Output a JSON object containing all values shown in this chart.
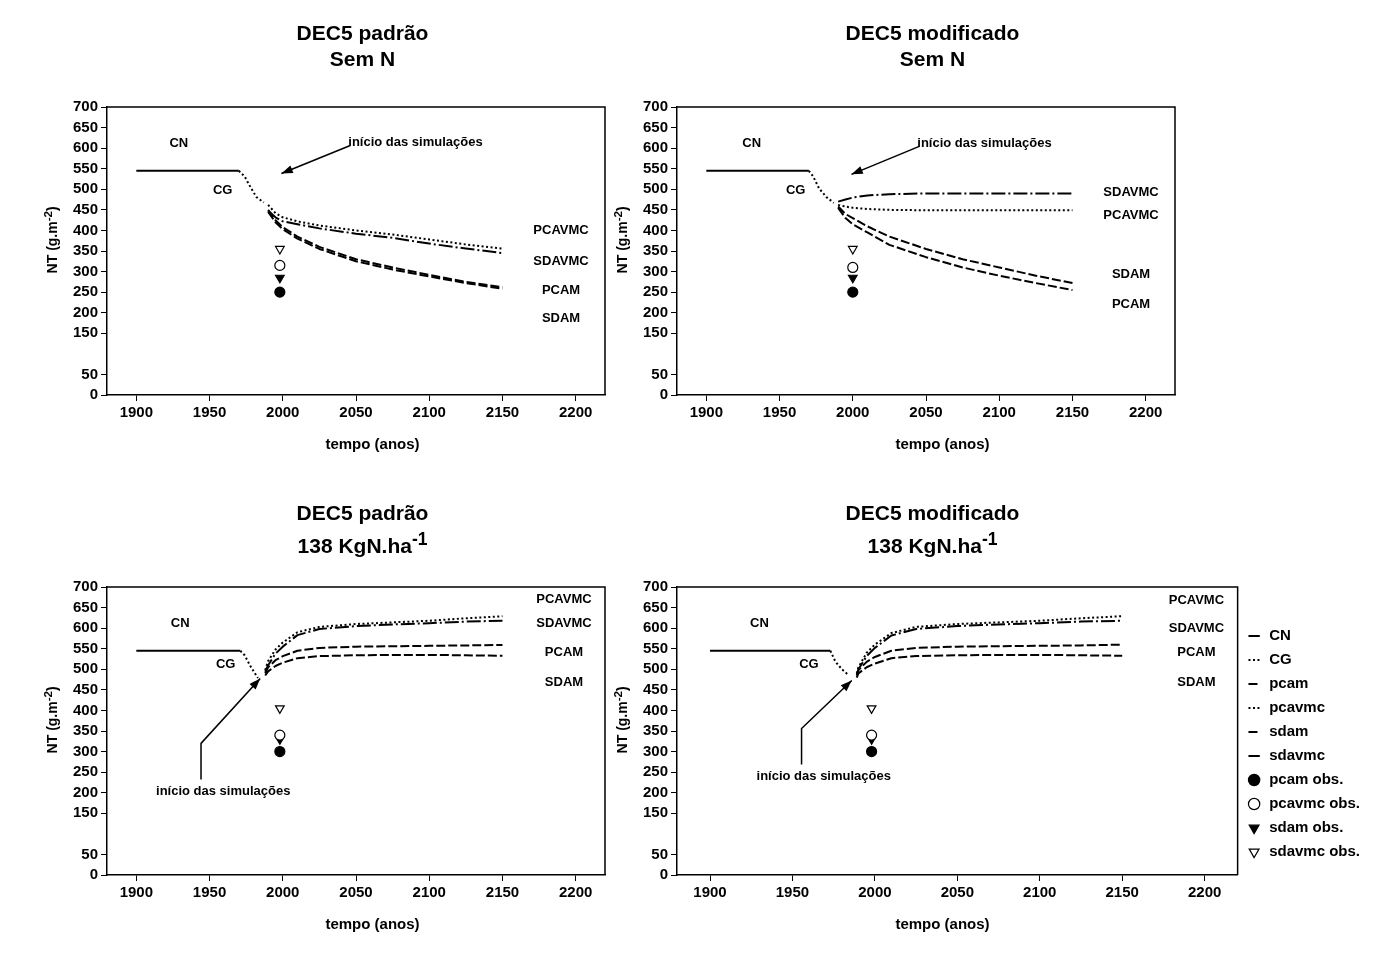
{
  "chart_data": [
    {
      "type": "line",
      "title": "DEC5 padrão",
      "subtitle": "Sem N",
      "xlabel": "tempo (anos)",
      "ylabel": "NT (g.m$^{-2}$)",
      "xlim": [
        1880,
        2220
      ],
      "xticks": [
        1900,
        1950,
        2000,
        2050,
        2100,
        2150,
        2200
      ],
      "ylim": [
        0,
        700
      ],
      "yticks": [
        0,
        50,
        150,
        200,
        250,
        300,
        350,
        400,
        450,
        500,
        550,
        600,
        650,
        700
      ],
      "grid": false,
      "legend": false,
      "annotations": [
        "início das simulações",
        "PCAVMC",
        "SDAVMC",
        "PCAM",
        "SDAM"
      ],
      "series": [
        {
          "name": "CN",
          "color": "#000000",
          "line_style": "solid",
          "x": [
            1900,
            1970
          ],
          "values": [
            545,
            545
          ]
        },
        {
          "name": "CG",
          "color": "#000000",
          "line_style": "dotted",
          "x": [
            1970,
            1974,
            1978,
            1982,
            1987
          ],
          "values": [
            545,
            531,
            505,
            481,
            468
          ]
        },
        {
          "color": "#000000",
          "line_style": "dashed",
          "x": [
            1990,
            1995,
            2000,
            2010,
            2025,
            2050,
            2075,
            2100,
            2125,
            2150
          ],
          "values": [
            450,
            425,
            408,
            385,
            360,
            330,
            310,
            292,
            275,
            262
          ]
        },
        {
          "color": "#000000",
          "line_style": "dotted",
          "x": [
            1990,
            1995,
            2000,
            2010,
            2025,
            2050,
            2075,
            2100,
            2125,
            2150
          ],
          "values": [
            462,
            442,
            432,
            422,
            412,
            400,
            390,
            378,
            366,
            356
          ]
        },
        {
          "color": "#000000",
          "line_style": "dashed",
          "x": [
            1990,
            1995,
            2000,
            2010,
            2025,
            2050,
            2075,
            2100,
            2125,
            2150
          ],
          "values": [
            445,
            420,
            403,
            380,
            355,
            325,
            305,
            288,
            272,
            258
          ]
        },
        {
          "color": "#000000",
          "line_style": "dashdot",
          "x": [
            1990,
            1995,
            2000,
            2010,
            2025,
            2050,
            2075,
            2100,
            2125,
            2150
          ],
          "values": [
            448,
            432,
            422,
            415,
            405,
            392,
            382,
            368,
            356,
            345
          ]
        },
        {
          "type": "scatter",
          "marker": "circle",
          "color": "#000000",
          "x": [
            1998
          ],
          "values": [
            250
          ]
        },
        {
          "type": "scatter",
          "marker": "circle",
          "color": "#ffffff",
          "x": [
            1998
          ],
          "values": [
            315
          ]
        },
        {
          "type": "scatter",
          "marker": "triangle",
          "color": "#000000",
          "x": [
            1998
          ],
          "values": [
            285
          ]
        },
        {
          "type": "scatter",
          "marker": "triangle",
          "color": "#ffffff",
          "x": [
            1998
          ],
          "values": [
            355
          ]
        }
      ]
    },
    {
      "type": "line",
      "title": "DEC5 modificado",
      "subtitle": "Sem N",
      "xlabel": "tempo (anos)",
      "ylabel": "NT (g.m$^{-2}$)",
      "xlim": [
        1880,
        2220
      ],
      "xticks": [
        1900,
        1950,
        2000,
        2050,
        2100,
        2150,
        2200
      ],
      "ylim": [
        0,
        700
      ],
      "yticks": [
        0,
        50,
        150,
        200,
        250,
        300,
        350,
        400,
        450,
        500,
        550,
        600,
        650,
        700
      ],
      "grid": false,
      "legend": false,
      "annotations": [
        "início das simulações",
        "SDAVMC",
        "PCAVMC",
        "SDAM",
        "PCAM"
      ],
      "series": [
        {
          "name": "CN",
          "color": "#000000",
          "line_style": "solid",
          "x": [
            1900,
            1970
          ],
          "values": [
            545,
            545
          ]
        },
        {
          "name": "CG",
          "color": "#000000",
          "line_style": "dotted",
          "x": [
            1970,
            1973,
            1977,
            1982,
            1987
          ],
          "values": [
            545,
            531,
            502,
            481,
            467
          ]
        },
        {
          "color": "#000000",
          "line_style": "dashed",
          "x": [
            1990,
            1995,
            2000,
            2010,
            2025,
            2050,
            2075,
            2100,
            2125,
            2150
          ],
          "values": [
            455,
            430,
            415,
            395,
            365,
            335,
            310,
            290,
            272,
            255
          ]
        },
        {
          "color": "#000000",
          "line_style": "dotted",
          "x": [
            1990,
            1995,
            2000,
            2010,
            2025,
            2050,
            2075,
            2100,
            2125,
            2150
          ],
          "values": [
            462,
            458,
            455,
            452,
            450,
            449,
            449,
            449,
            449,
            449
          ]
        },
        {
          "color": "#000000",
          "line_style": "dashed",
          "x": [
            1990,
            1995,
            2000,
            2010,
            2025,
            2050,
            2075,
            2100,
            2125,
            2150
          ],
          "values": [
            458,
            440,
            430,
            410,
            385,
            355,
            330,
            310,
            290,
            272
          ]
        },
        {
          "color": "#000000",
          "line_style": "dashdot",
          "x": [
            1990,
            1995,
            2000,
            2010,
            2025,
            2050,
            2075,
            2100,
            2125,
            2150
          ],
          "values": [
            470,
            475,
            480,
            485,
            488,
            490,
            490,
            490,
            490,
            490
          ]
        },
        {
          "type": "scatter",
          "marker": "circle",
          "color": "#000000",
          "x": [
            2000
          ],
          "values": [
            250
          ]
        },
        {
          "type": "scatter",
          "marker": "circle",
          "color": "#ffffff",
          "x": [
            2000
          ],
          "values": [
            310
          ]
        },
        {
          "type": "scatter",
          "marker": "triangle",
          "color": "#000000",
          "x": [
            2000
          ],
          "values": [
            285
          ]
        },
        {
          "type": "scatter",
          "marker": "triangle",
          "color": "#ffffff",
          "x": [
            2000
          ],
          "values": [
            355
          ]
        }
      ]
    },
    {
      "type": "line",
      "title": "DEC5 padrão",
      "subtitle": "138 KgN.ha$^{-1}$",
      "xlabel": "tempo (anos)",
      "ylabel": "NT (g.m$^{-2}$)",
      "xlim": [
        1880,
        2220
      ],
      "xticks": [
        1900,
        1950,
        2000,
        2050,
        2100,
        2150,
        2200
      ],
      "ylim": [
        0,
        700
      ],
      "yticks": [
        0,
        50,
        150,
        200,
        250,
        300,
        350,
        400,
        450,
        500,
        550,
        600,
        650,
        700
      ],
      "grid": false,
      "legend": false,
      "annotations": [
        {
          "text": "início das simulações",
          "x": 1988,
          "y": 490
        },
        "PCAVMC",
        "SDAVMC",
        "PCAM",
        "SDAM"
      ],
      "series": [
        {
          "name": "CN",
          "color": "#000000",
          "line_style": "solid",
          "x": [
            1900,
            1971
          ],
          "values": [
            545,
            545
          ]
        },
        {
          "name": "CG",
          "color": "#000000",
          "line_style": "dotted",
          "x": [
            1971,
            1974,
            1978,
            1983
          ],
          "values": [
            545,
            534,
            507,
            479
          ]
        },
        {
          "color": "#000000",
          "line_style": "dashed",
          "x": [
            1988,
            1990,
            1995,
            2000,
            2010,
            2025,
            2050,
            2075,
            2100,
            2125,
            2150
          ],
          "values": [
            490,
            505,
            522,
            532,
            545,
            552,
            555,
            556,
            557,
            558,
            559
          ]
        },
        {
          "color": "#000000",
          "line_style": "dotted",
          "x": [
            1988,
            1990,
            1995,
            2000,
            2010,
            2025,
            2050,
            2075,
            2100,
            2125,
            2150
          ],
          "values": [
            498,
            520,
            548,
            565,
            590,
            603,
            610,
            614,
            618,
            624,
            629
          ]
        },
        {
          "color": "#000000",
          "line_style": "dashed",
          "x": [
            1988,
            1990,
            1995,
            2000,
            2010,
            2025,
            2050,
            2075,
            2100,
            2125,
            2150
          ],
          "values": [
            485,
            495,
            508,
            516,
            527,
            532,
            534,
            535,
            535,
            534,
            533
          ]
        },
        {
          "color": "#000000",
          "line_style": "dashdot",
          "x": [
            1988,
            1990,
            1995,
            2000,
            2010,
            2025,
            2050,
            2075,
            2100,
            2125,
            2150
          ],
          "values": [
            494,
            510,
            538,
            555,
            583,
            598,
            605,
            609,
            612,
            616,
            618
          ]
        },
        {
          "type": "scatter",
          "marker": "circle",
          "color": "#000000",
          "x": [
            1998
          ],
          "values": [
            300
          ]
        },
        {
          "type": "scatter",
          "marker": "circle",
          "color": "#ffffff",
          "x": [
            1998
          ],
          "values": [
            340
          ]
        },
        {
          "type": "scatter",
          "marker": "triangle",
          "color": "#000000",
          "x": [
            1998
          ],
          "values": [
            330
          ]
        },
        {
          "type": "scatter",
          "marker": "triangle",
          "color": "#ffffff",
          "x": [
            1998
          ],
          "values": [
            405
          ]
        }
      ]
    },
    {
      "type": "line",
      "title": "DEC5 modificado",
      "subtitle": "138 KgN.ha$^{-1}$",
      "xlabel": "tempo (anos)",
      "ylabel": "NT (g.m$^{-2}$)",
      "xlim": [
        1880,
        2220
      ],
      "xticks": [
        1900,
        1950,
        2000,
        2050,
        2100,
        2150,
        2200
      ],
      "ylim": [
        0,
        700
      ],
      "yticks": [
        0,
        50,
        150,
        200,
        250,
        300,
        350,
        400,
        450,
        500,
        550,
        600,
        650,
        700
      ],
      "grid": false,
      "legend": "right",
      "annotations": [
        {
          "text": "início das simulações",
          "x": 1989,
          "y": 485
        },
        "PCAVMC",
        "SDAVMC",
        "PCAM",
        "SDAM"
      ],
      "series": [
        {
          "name": "CN",
          "color": "#000000",
          "line_style": "solid",
          "x": [
            1900,
            1973
          ],
          "values": [
            545,
            545
          ]
        },
        {
          "name": "CG",
          "color": "#000000",
          "line_style": "dotted",
          "x": [
            1973,
            1976,
            1980,
            1984
          ],
          "values": [
            545,
            519,
            500,
            486
          ]
        },
        {
          "name": "pcam",
          "color": "#000000",
          "line_style": "dashed",
          "x": [
            1989,
            1990,
            1995,
            2000,
            2010,
            2025,
            2050,
            2075,
            2100,
            2125,
            2150
          ],
          "values": [
            485,
            498,
            518,
            530,
            545,
            552,
            555,
            556,
            557,
            558,
            560
          ]
        },
        {
          "name": "pcavmc",
          "color": "#000000",
          "line_style": "dotted",
          "x": [
            1989,
            1990,
            1995,
            2000,
            2010,
            2025,
            2050,
            2075,
            2100,
            2125,
            2150
          ],
          "values": [
            490,
            505,
            540,
            560,
            588,
            603,
            610,
            614,
            618,
            624,
            629
          ]
        },
        {
          "name": "sdam",
          "color": "#000000",
          "line_style": "dashed",
          "x": [
            1989,
            1990,
            1995,
            2000,
            2010,
            2025,
            2050,
            2075,
            2100,
            2125,
            2150
          ],
          "values": [
            480,
            490,
            505,
            514,
            527,
            532,
            534,
            535,
            535,
            534,
            533
          ]
        },
        {
          "name": "sdavmc",
          "color": "#000000",
          "line_style": "dashdot",
          "x": [
            1989,
            1990,
            1995,
            2000,
            2010,
            2025,
            2050,
            2075,
            2100,
            2125,
            2150
          ],
          "values": [
            487,
            500,
            532,
            552,
            582,
            598,
            605,
            609,
            612,
            616,
            618
          ]
        },
        {
          "name": "pcam obs.",
          "type": "scatter",
          "marker": "circle",
          "color": "#000000",
          "x": [
            1998
          ],
          "values": [
            300
          ]
        },
        {
          "name": "pcavmc obs.",
          "type": "scatter",
          "marker": "circle",
          "color": "#ffffff",
          "x": [
            1998
          ],
          "values": [
            340
          ]
        },
        {
          "name": "sdam obs.",
          "type": "scatter",
          "marker": "triangle",
          "color": "#000000",
          "x": [
            1998
          ],
          "values": [
            330
          ]
        },
        {
          "name": "sdavmc obs.",
          "type": "scatter",
          "marker": "triangle",
          "color": "#ffffff",
          "x": [
            1998
          ],
          "values": [
            405
          ]
        }
      ]
    }
  ]
}
